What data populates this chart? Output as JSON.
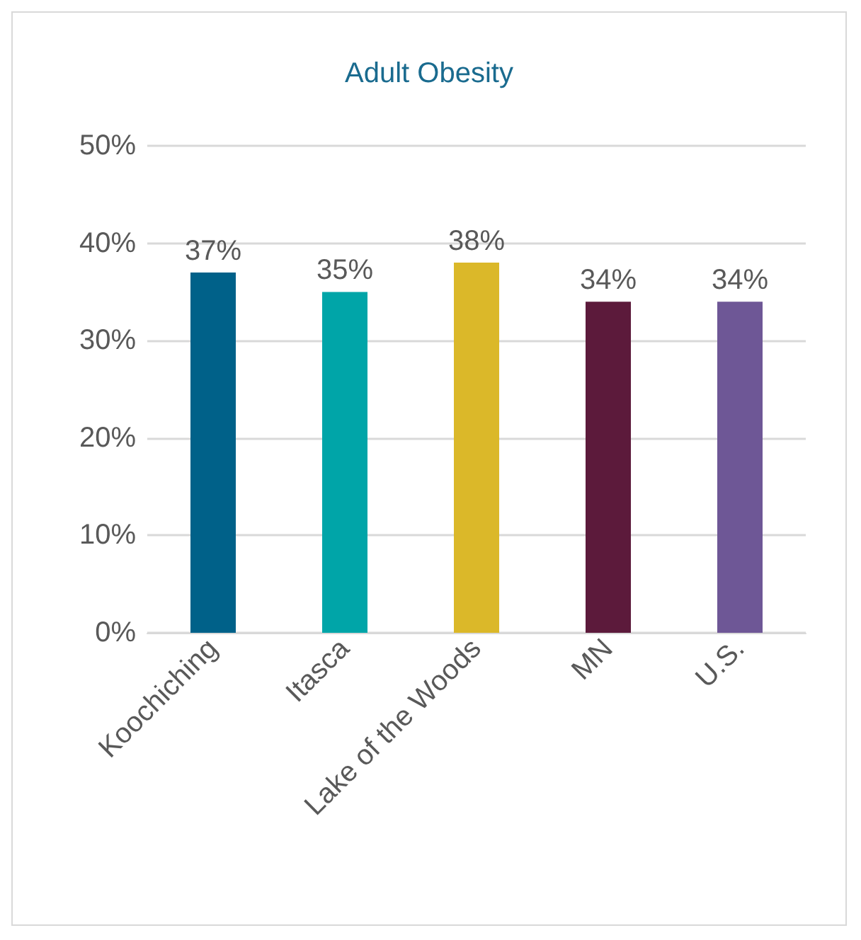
{
  "chart_data": {
    "type": "bar",
    "title": "Adult Obesity",
    "categories": [
      "Koochiching",
      "Itasca",
      "Lake of the Woods",
      "MN",
      "U.S."
    ],
    "values": [
      37,
      35,
      38,
      34,
      34
    ],
    "colors": [
      "#006189",
      "#00a5a8",
      "#dbb829",
      "#5c1a3b",
      "#6e5796"
    ],
    "value_labels": [
      "37%",
      "35%",
      "38%",
      "34%",
      "34%"
    ],
    "ylim": [
      0,
      50
    ],
    "yticks": [
      {
        "value": 0,
        "label": "0%"
      },
      {
        "value": 10,
        "label": "10%"
      },
      {
        "value": 20,
        "label": "20%"
      },
      {
        "value": 30,
        "label": "30%"
      },
      {
        "value": 40,
        "label": "40%"
      },
      {
        "value": 50,
        "label": "50%"
      }
    ],
    "grid": "y"
  }
}
